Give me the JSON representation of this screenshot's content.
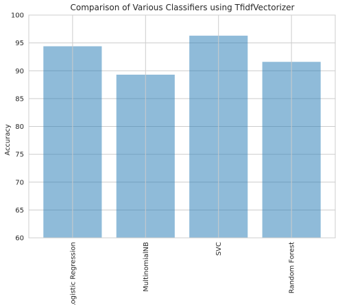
{
  "chart_data": {
    "type": "bar",
    "title": "Comparison of Various Classifiers using TfidfVectorizer",
    "xlabel": "",
    "ylabel": "Accuracy",
    "categories": [
      "Logistic Regression",
      "MultinomialNB",
      "SVC",
      "Random Forest"
    ],
    "values": [
      94.4,
      89.3,
      96.3,
      91.6
    ],
    "ylim": [
      60,
      100
    ],
    "yticks": [
      60,
      65,
      70,
      75,
      80,
      85,
      90,
      95,
      100
    ],
    "grid": true,
    "bar_color": "#1f77b4",
    "bar_opacity": 0.5,
    "grid_color": "#cccccc"
  }
}
